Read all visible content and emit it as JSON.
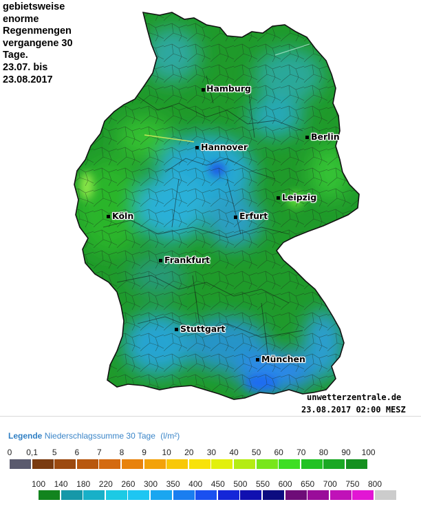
{
  "caption": "gebietsweise\nenorme\nRegenmengen\nvergangene 30\nTage.\n23.07. bis\n23.08.2017",
  "map": {
    "cities": [
      {
        "name": "Hamburg",
        "id": "hamburg"
      },
      {
        "name": "Berlin",
        "id": "berlin"
      },
      {
        "name": "Hannover",
        "id": "hannover"
      },
      {
        "name": "Leipzig",
        "id": "leipzig"
      },
      {
        "name": "Köln",
        "id": "koeln"
      },
      {
        "name": "Erfurt",
        "id": "erfurt"
      },
      {
        "name": "Frankfurt",
        "id": "frankfurt"
      },
      {
        "name": "Stuttgart",
        "id": "stuttgart"
      },
      {
        "name": "München",
        "id": "muenchen"
      }
    ],
    "source": "unwetterzentrale.de",
    "timestamp": "23.08.2017 02:00 MESZ"
  },
  "legend": {
    "title_bold": "Legende",
    "title_rest": "Niederschlagssumme 30 Tage",
    "unit": "(l/m²)",
    "row1": {
      "labels": [
        "0",
        "0,1",
        "5",
        "6",
        "7",
        "8",
        "9",
        "10",
        "20",
        "30",
        "40",
        "50",
        "60",
        "70",
        "80",
        "90",
        "100"
      ],
      "colors": [
        "#5a5a6e",
        "#7a3b10",
        "#9c4a10",
        "#b8580f",
        "#d46a10",
        "#e8820c",
        "#f3a20a",
        "#f8c808",
        "#f8e20a",
        "#e2f00c",
        "#b4ec14",
        "#78e61c",
        "#3ede24",
        "#22c224",
        "#1aa824",
        "#159020"
      ]
    },
    "row2": {
      "labels": [
        "100",
        "140",
        "180",
        "220",
        "260",
        "300",
        "350",
        "400",
        "450",
        "500",
        "550",
        "600",
        "650",
        "700",
        "750",
        "800"
      ],
      "colors": [
        "#12841e",
        "#1698a8",
        "#18b0c8",
        "#1ccae4",
        "#1ec6f2",
        "#1aa6f0",
        "#1a7ef0",
        "#1a50f0",
        "#1426d8",
        "#1010b0",
        "#0c0c80",
        "#6e0c78",
        "#9a0c9a",
        "#c012b8",
        "#e216d4",
        "#cccccc"
      ]
    }
  }
}
